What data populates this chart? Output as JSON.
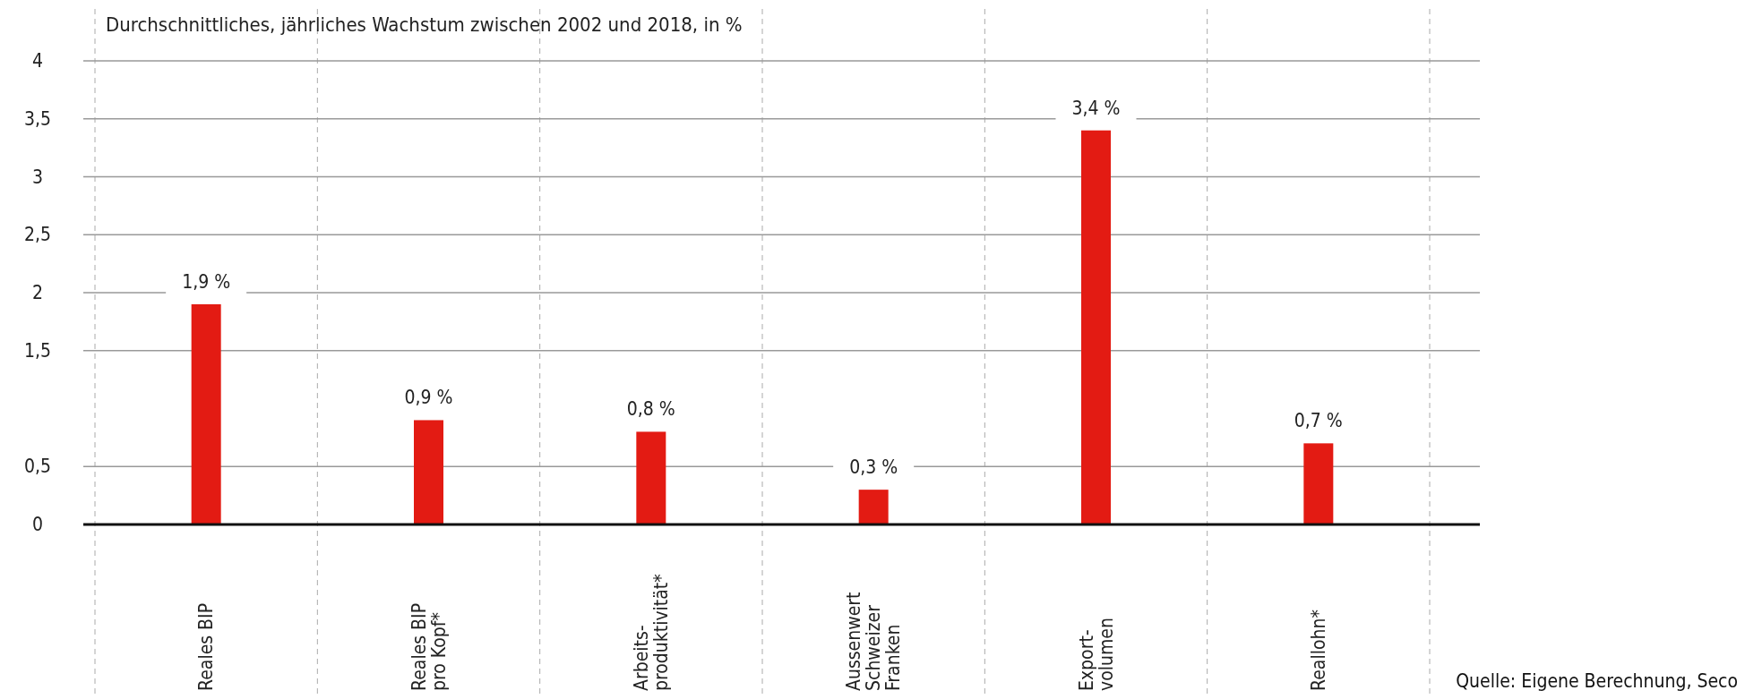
{
  "chart_data": {
    "type": "bar",
    "title": "Durchschnittliches, jährliches Wachstum zwischen 2002 und 2018, in %",
    "categories": [
      "Reales BIP",
      "Reales BIP\npro Kopf*",
      "Arbeits-\nproduktivität*",
      "Aussenwert\nSchweizer\nFranken",
      "Export-\nvolumen",
      "Reallohn*"
    ],
    "values": [
      1.9,
      0.9,
      0.8,
      0.3,
      3.4,
      0.7
    ],
    "value_labels": [
      "1,9 %",
      "0,9 %",
      "0,8 %",
      "0,3 %",
      "3,4 %",
      "0,7 %"
    ],
    "color": "#e31b13",
    "ylim": [
      0,
      4
    ],
    "yticks": [
      {
        "value": 0,
        "label": "0"
      },
      {
        "value": 0.5,
        "label": "0,5"
      },
      {
        "value": 1.5,
        "label": "1,5"
      },
      {
        "value": 2,
        "label": "2"
      },
      {
        "value": 2.5,
        "label": "2,5"
      },
      {
        "value": 3,
        "label": "3"
      },
      {
        "value": 3.5,
        "label": "3,5"
      },
      {
        "value": 4,
        "label": "4"
      }
    ],
    "grid": true,
    "annotations": [
      "Quelle: Eigene Berechnung, Seco"
    ]
  }
}
